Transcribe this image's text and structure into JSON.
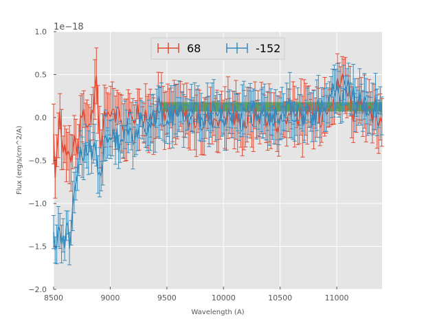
{
  "chart_data": {
    "type": "line",
    "xlabel": "Wavelength (A)",
    "ylabel": "Flux (erg/s/cm^2/A)",
    "offset_text": "1e−18",
    "xlim": [
      8500,
      11400
    ],
    "ylim": [
      -2.0,
      1.0
    ],
    "x_ticks": [
      8500,
      9000,
      9500,
      10000,
      10500,
      11000
    ],
    "x_tick_labels": [
      "8500",
      "9000",
      "9500",
      "10000",
      "10500",
      "11000"
    ],
    "y_ticks": [
      -2.0,
      -1.5,
      -1.0,
      -0.5,
      0.0,
      0.5,
      1.0
    ],
    "y_tick_labels": [
      "−2.0",
      "−1.5",
      "−1.0",
      "−0.5",
      "0.0",
      "0.5",
      "1.0"
    ],
    "grid": true,
    "legend_position": "top-center",
    "band": {
      "x_range": [
        9460,
        11400
      ],
      "y_range": [
        0.07,
        0.18
      ],
      "color": "#3a9a3a"
    },
    "series": [
      {
        "name": "68",
        "color": "#e24a33",
        "error_bars": true,
        "anchors_x": [
          8500,
          8520,
          8540,
          8560,
          8580,
          8600,
          8620,
          8640,
          8660,
          8680,
          8700,
          8720,
          8740,
          8760,
          8780,
          8800,
          8820,
          8840,
          8860,
          8880,
          8900,
          8920,
          8940,
          8960,
          8980,
          9000,
          9050,
          9100,
          9150,
          9200,
          9250,
          9300,
          9350,
          9400,
          9450,
          9500,
          9600,
          9700,
          9800,
          9900,
          10000,
          10100,
          10200,
          10300,
          10400,
          10500,
          10600,
          10700,
          10800,
          10850,
          10900,
          10950,
          11000,
          11050,
          11100,
          11150,
          11200,
          11300,
          11400
        ],
        "anchors_y": [
          -0.3,
          -0.7,
          -0.2,
          0.1,
          -0.4,
          -0.3,
          -0.35,
          -0.3,
          -0.5,
          -0.2,
          -0.4,
          -0.25,
          -0.1,
          0.0,
          -0.05,
          -0.1,
          0.0,
          0.05,
          0.2,
          0.4,
          -0.2,
          -0.3,
          0.0,
          0.1,
          -0.1,
          0.15,
          0.05,
          -0.1,
          0.0,
          0.05,
          0.1,
          -0.05,
          0.0,
          0.05,
          0.2,
          0.0,
          0.05,
          0.0,
          -0.05,
          0.0,
          0.05,
          0.0,
          -0.05,
          0.05,
          0.0,
          -0.05,
          0.05,
          0.0,
          0.05,
          0.0,
          0.15,
          0.25,
          0.35,
          0.45,
          0.35,
          0.05,
          0.1,
          0.0,
          0.0
        ],
        "error": 0.26
      },
      {
        "name": "-152",
        "color": "#348abd",
        "error_bars": true,
        "anchors_x": [
          8500,
          8520,
          8540,
          8560,
          8580,
          8600,
          8620,
          8640,
          8660,
          8680,
          8700,
          8720,
          8740,
          8760,
          8780,
          8800,
          8820,
          8840,
          8860,
          8880,
          8900,
          8920,
          8940,
          8960,
          8980,
          9000,
          9050,
          9100,
          9150,
          9200,
          9250,
          9300,
          9350,
          9400,
          9450,
          9500,
          9600,
          9700,
          9800,
          9900,
          10000,
          10100,
          10200,
          10300,
          10400,
          10500,
          10600,
          10700,
          10800,
          10850,
          10900,
          10950,
          11000,
          11050,
          11100,
          11150,
          11200,
          11300,
          11400
        ],
        "anchors_y": [
          -1.45,
          -1.55,
          -1.35,
          -1.4,
          -1.3,
          -1.45,
          -1.3,
          -1.4,
          -1.2,
          -0.95,
          -0.7,
          -0.5,
          -0.45,
          -0.6,
          -0.4,
          -0.5,
          -0.3,
          -0.4,
          -0.35,
          -0.45,
          -0.6,
          -0.65,
          -0.4,
          -0.3,
          -0.35,
          -0.2,
          -0.25,
          -0.3,
          -0.15,
          -0.2,
          -0.1,
          -0.05,
          -0.1,
          0.0,
          0.05,
          0.0,
          0.05,
          0.1,
          0.0,
          0.05,
          0.0,
          0.05,
          0.1,
          0.05,
          0.0,
          0.05,
          0.1,
          0.05,
          0.0,
          0.1,
          0.2,
          0.3,
          0.3,
          0.2,
          0.35,
          0.25,
          0.2,
          0.15,
          0.1
        ],
        "error": 0.22
      }
    ]
  }
}
